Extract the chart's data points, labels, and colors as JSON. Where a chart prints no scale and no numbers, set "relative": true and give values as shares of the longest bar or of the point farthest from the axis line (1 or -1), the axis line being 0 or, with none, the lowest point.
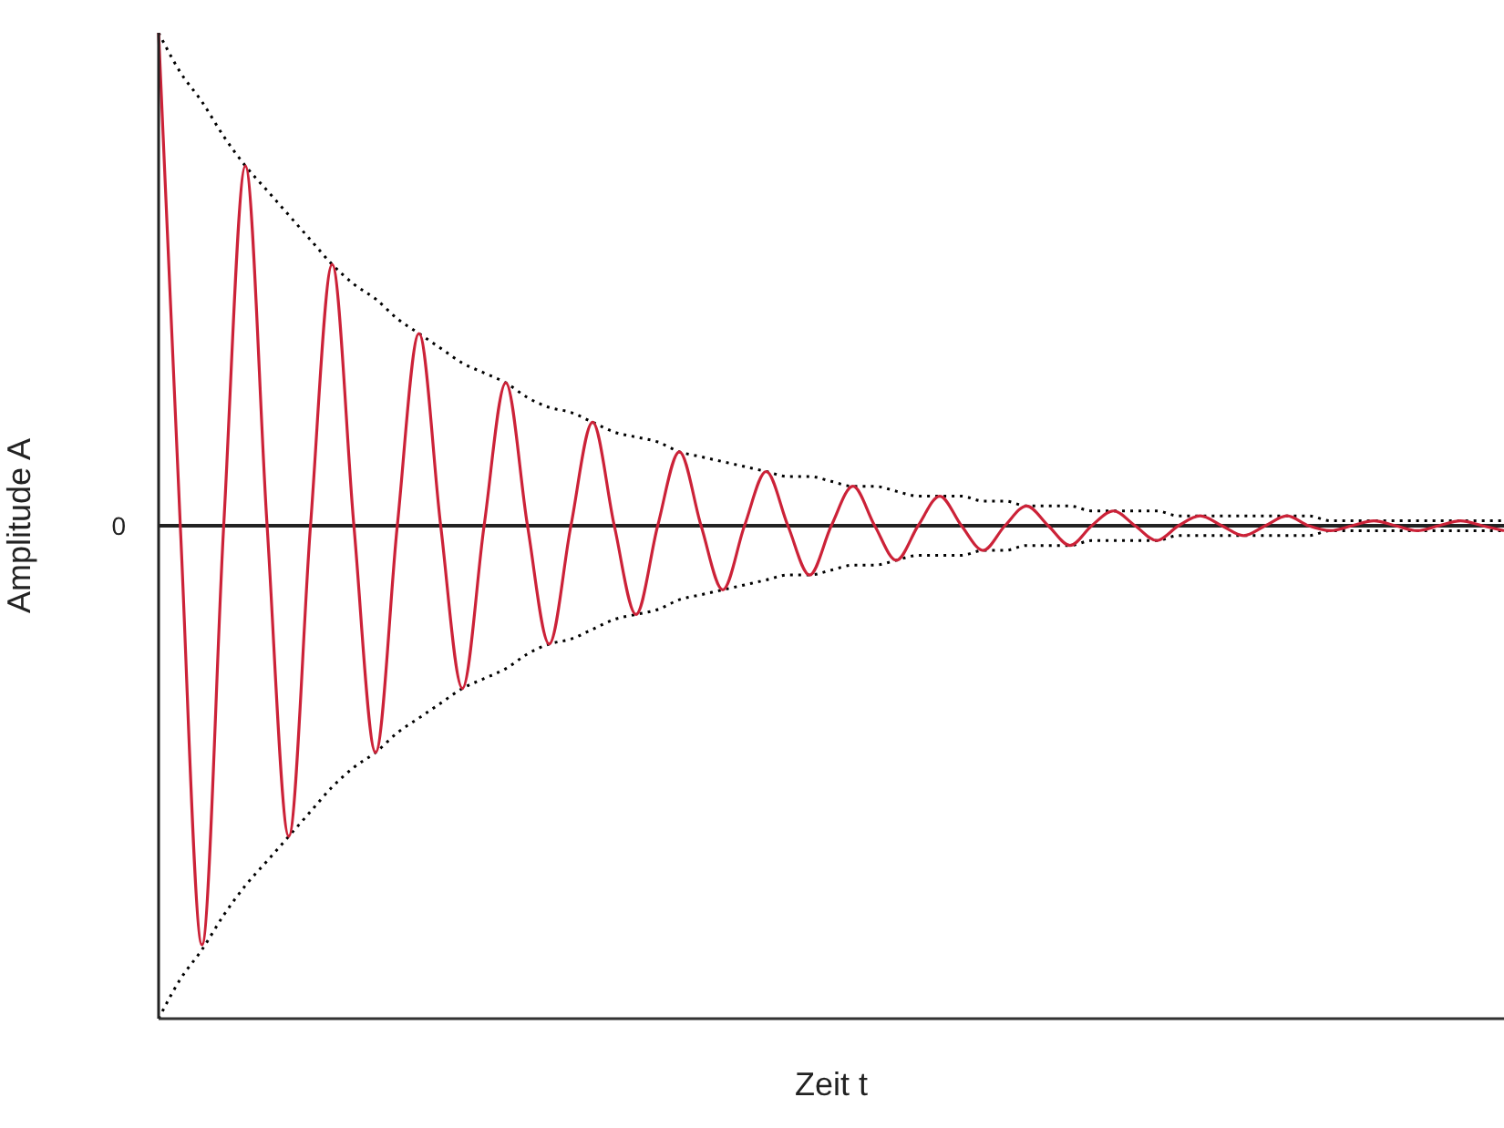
{
  "chart_data": {
    "type": "line",
    "relative": true,
    "xlabel": "Zeit t",
    "ylabel": "Amplitude A",
    "marker": "none",
    "legend": false,
    "annotations": [
      "0"
    ],
    "categories": [
      null,
      null,
      null,
      null,
      null,
      null,
      null,
      null,
      null,
      null,
      null,
      null,
      null,
      null,
      null,
      null,
      null,
      null,
      null,
      null,
      null,
      null,
      null,
      null,
      null,
      null,
      null,
      null,
      null,
      null,
      null,
      null,
      null,
      null,
      null,
      null,
      null,
      null,
      null,
      null,
      null,
      null,
      null,
      null,
      null,
      null,
      null,
      null,
      null,
      null,
      null,
      null,
      null,
      null,
      null,
      null,
      null,
      null,
      null,
      null,
      null,
      null,
      null
    ],
    "series": [
      {
        "color": "#000000",
        "line_style": "dotted",
        "values": [
          1,
          0.92,
          0.86,
          0.79,
          0.73,
          0.68,
          0.63,
          0.58,
          0.53,
          0.49,
          0.46,
          0.42,
          0.39,
          0.36,
          0.33,
          0.31,
          0.29,
          0.26,
          0.24,
          0.23,
          0.21,
          0.19,
          0.18,
          0.17,
          0.15,
          0.14,
          0.13,
          0.12,
          0.11,
          0.1,
          0.1,
          0.09,
          0.08,
          0.08,
          0.07,
          0.06,
          0.06,
          0.06,
          0.05,
          0.05,
          0.04,
          0.04,
          0.04,
          0.03,
          0.03,
          0.03,
          0.03,
          0.02,
          0.02,
          0.02,
          0.02,
          0.02,
          0.02,
          0.02,
          0.01,
          0.01,
          0.01,
          0.01,
          0.01,
          0.01,
          0.01,
          0.01,
          0.01
        ]
      },
      {
        "color": "#000000",
        "line_style": "dotted",
        "values": [
          -1,
          -0.92,
          -0.86,
          -0.79,
          -0.73,
          -0.68,
          -0.63,
          -0.58,
          -0.53,
          -0.49,
          -0.46,
          -0.42,
          -0.39,
          -0.36,
          -0.33,
          -0.31,
          -0.29,
          -0.26,
          -0.24,
          -0.23,
          -0.21,
          -0.19,
          -0.18,
          -0.17,
          -0.15,
          -0.14,
          -0.13,
          -0.12,
          -0.11,
          -0.1,
          -0.1,
          -0.09,
          -0.08,
          -0.08,
          -0.07,
          -0.06,
          -0.06,
          -0.06,
          -0.05,
          -0.05,
          -0.04,
          -0.04,
          -0.04,
          -0.03,
          -0.03,
          -0.03,
          -0.03,
          -0.02,
          -0.02,
          -0.02,
          -0.02,
          -0.02,
          -0.02,
          -0.02,
          -0.01,
          -0.01,
          -0.01,
          -0.01,
          -0.01,
          -0.01,
          -0.01,
          -0.01,
          -0.01
        ]
      },
      {
        "color": "#cc2238",
        "line_style": "solid",
        "values": [
          1,
          0,
          -0.85,
          0,
          0.73,
          0,
          -0.63,
          0,
          0.53,
          0,
          -0.46,
          0,
          0.39,
          0,
          -0.33,
          0,
          0.29,
          0,
          -0.24,
          0,
          0.21,
          0,
          -0.18,
          0,
          0.15,
          0,
          -0.13,
          0,
          0.11,
          0,
          -0.1,
          0,
          0.08,
          0,
          -0.07,
          0,
          0.06,
          0,
          -0.05,
          0,
          0.04,
          0,
          -0.04,
          0,
          0.03,
          0,
          -0.03,
          0,
          0.02,
          0,
          -0.02,
          0,
          0.02,
          0,
          -0.01,
          0,
          0.01,
          0,
          -0.01,
          0,
          0.01,
          0,
          -0.01
        ]
      }
    ]
  }
}
